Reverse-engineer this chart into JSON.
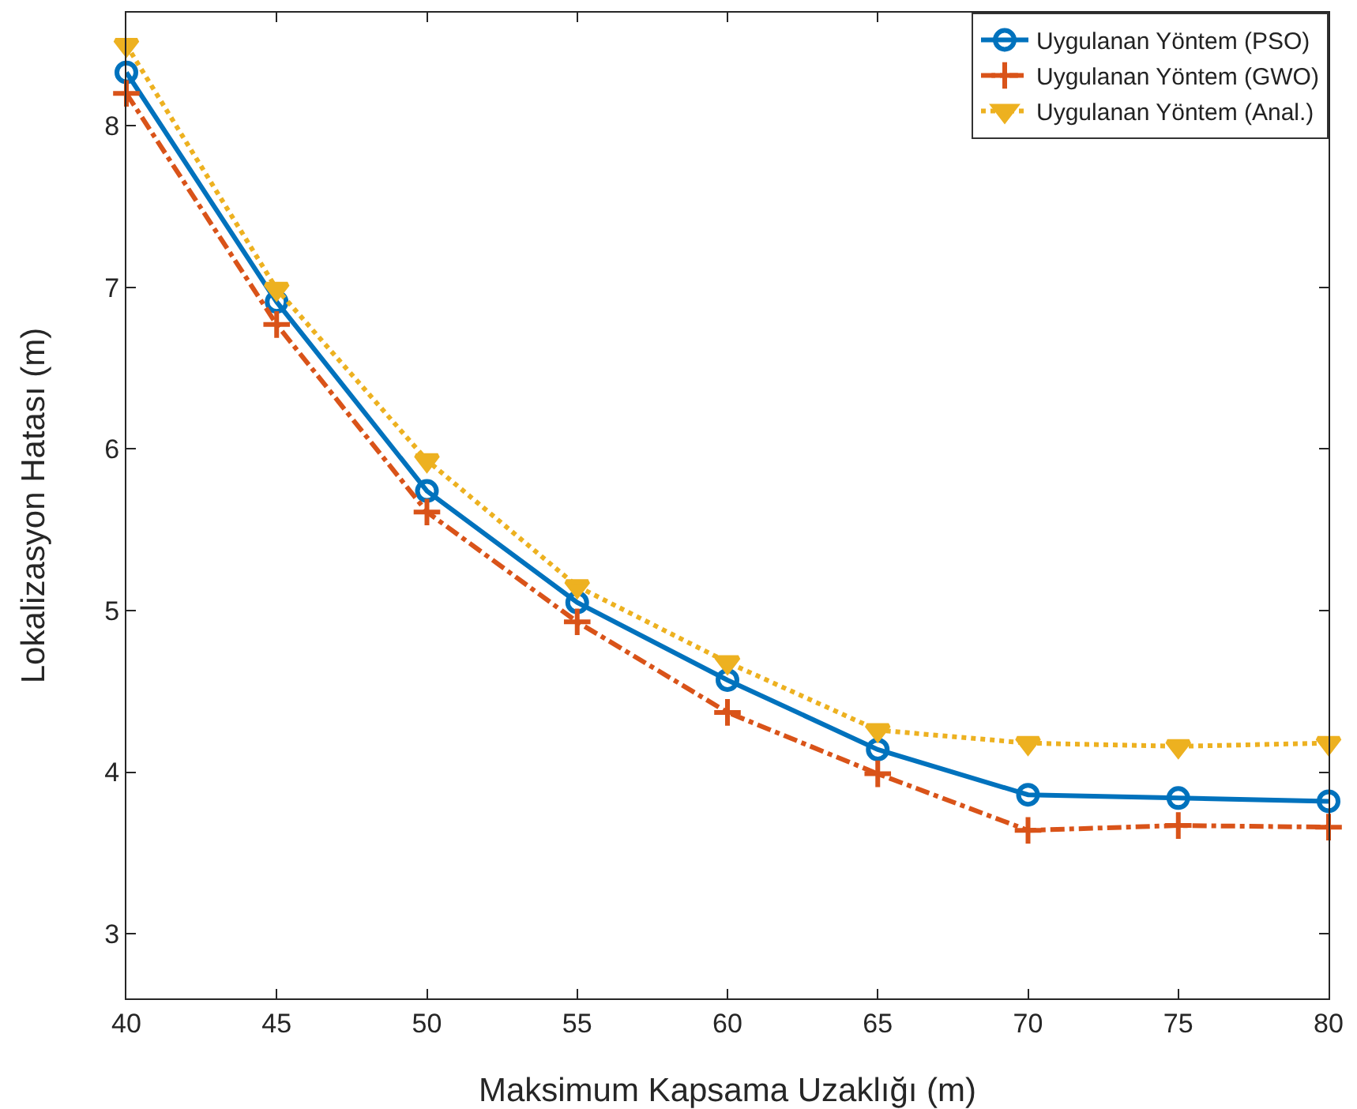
{
  "chart_data": {
    "type": "line",
    "xlabel": "Maksimum Kapsama Uzaklığı (m)",
    "ylabel": "Lokalizasyon Hatası (m)",
    "x": [
      40,
      45,
      50,
      55,
      60,
      65,
      70,
      75,
      80
    ],
    "series": [
      {
        "name": "Uygulanan Yöntem (PSO)",
        "color": "#0072bd",
        "marker": "circle",
        "line_style": "solid",
        "values": [
          8.33,
          6.91,
          5.74,
          5.05,
          4.57,
          4.14,
          3.86,
          3.84,
          3.82
        ]
      },
      {
        "name": "Uygulanan Yöntem (GWO)",
        "color": "#d95319",
        "marker": "cross",
        "line_style": "dashed",
        "values": [
          8.2,
          6.77,
          5.61,
          4.93,
          4.37,
          3.99,
          3.64,
          3.67,
          3.66
        ]
      },
      {
        "name": "Uygulanan Yöntem (Anal.)",
        "color": "#edb120",
        "marker": "triangle",
        "line_style": "dotted",
        "values": [
          8.5,
          6.99,
          5.93,
          5.15,
          4.68,
          4.26,
          4.18,
          4.16,
          4.18
        ]
      }
    ],
    "xlim": [
      40,
      80
    ],
    "xticks": [
      40,
      45,
      50,
      55,
      60,
      65,
      70,
      75,
      80
    ],
    "ylim": [
      2.6,
      8.7
    ],
    "yticks": [
      3,
      4,
      5,
      6,
      7,
      8
    ],
    "grid": false,
    "legend": "top right"
  }
}
